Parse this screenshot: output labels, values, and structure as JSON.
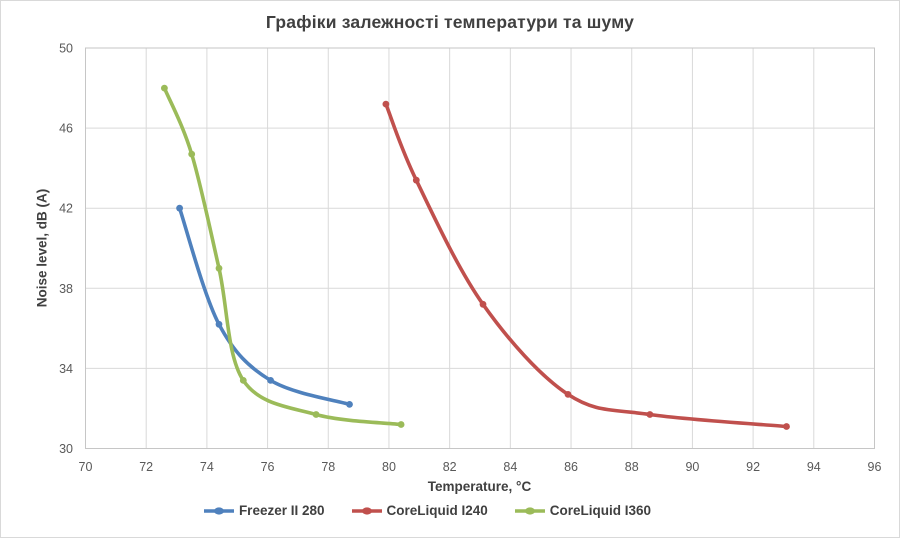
{
  "chart_data": {
    "type": "line",
    "title": "Графіки залежності температури та шуму",
    "xlabel": "Temperature, °C",
    "ylabel": "Noise level, dB (A)",
    "xlim": [
      70,
      96
    ],
    "xtick_step": 2,
    "ylim": [
      30,
      50
    ],
    "ytick_step": 4,
    "grid": true,
    "smooth": true,
    "legend_position": "bottom",
    "series": [
      {
        "name": "Freezer II 280",
        "color": "#4F81BD",
        "points": [
          [
            73.1,
            42.0
          ],
          [
            74.4,
            36.2
          ],
          [
            76.1,
            33.4
          ],
          [
            78.7,
            32.2
          ]
        ]
      },
      {
        "name": "CoreLiquid I240",
        "color": "#C0504D",
        "points": [
          [
            79.9,
            47.2
          ],
          [
            80.9,
            43.4
          ],
          [
            83.1,
            37.2
          ],
          [
            85.9,
            32.7
          ],
          [
            88.6,
            31.7
          ],
          [
            93.1,
            31.1
          ]
        ]
      },
      {
        "name": "CoreLiquid I360",
        "color": "#9BBB59",
        "points": [
          [
            72.6,
            48.0
          ],
          [
            73.5,
            44.7
          ],
          [
            74.4,
            39.0
          ],
          [
            75.2,
            33.4
          ],
          [
            77.6,
            31.7
          ],
          [
            80.4,
            31.2
          ]
        ]
      }
    ]
  },
  "colors": {
    "title": "#404040",
    "axis_title": "#404040",
    "tick": "#595959",
    "gridline": "#D9D9D9",
    "axis_line": "#C6C6C6",
    "frame_border": "#D9D9D9",
    "background": "#FFFFFF"
  }
}
